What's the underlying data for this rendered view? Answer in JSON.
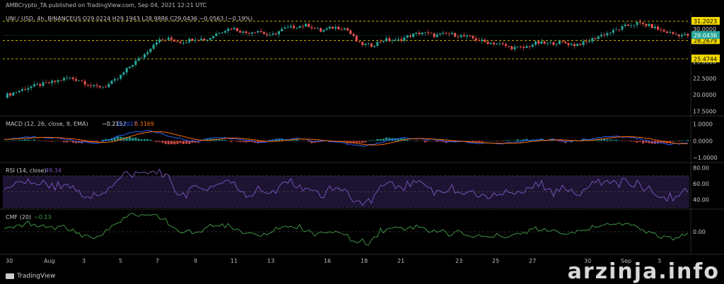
{
  "header": {
    "publisher": "AMBCrypto_TA published on TradingView.com, Sep 04, 2021 12:21 UTC"
  },
  "legend": {
    "price": "UNI / USD, 4h, BINANCEUS  O29.0224  H29.1943  L28.9886  C29.0436  −0.0563 (−0.19%)",
    "macd_title": "MACD (12, 26, close, 9, EMA)",
    "macd_hist": "−0.2152",
    "macd_line": "0.1017",
    "macd_signal": "0.3169",
    "rsi_title": "RSI (14, close)",
    "rsi_value": "49.34",
    "cmf_title": "CMF (20)",
    "cmf_value": "−0.13"
  },
  "price_axis": {
    "currency": "USD",
    "ticks": [
      "30.0000",
      "25.0000",
      "22.5000",
      "20.0000",
      "17.5000"
    ],
    "levels": [
      {
        "label": "31.2023",
        "value": 31.2023,
        "color": "#f2d900"
      },
      {
        "label": "28.2679",
        "value": 28.2679,
        "color": "#f2d900"
      },
      {
        "label": "25.4744",
        "value": 25.4744,
        "color": "#f2d900"
      }
    ],
    "current": {
      "label": "29.0436",
      "value": 29.0436,
      "color": "#26a69a"
    }
  },
  "macd_axis": {
    "ticks": [
      "1.0000",
      "0.0000",
      "−1.0000"
    ]
  },
  "rsi_axis": {
    "ticks": [
      "80.00",
      "60.00",
      "40.00"
    ]
  },
  "cmf_axis": {
    "ticks": [
      "0.00"
    ]
  },
  "time_axis": {
    "labels": [
      "30",
      "Aug",
      "3",
      "5",
      "7",
      "9",
      "11",
      "13",
      "16",
      "18",
      "21",
      "23",
      "25",
      "27",
      "30",
      "Sep",
      "3"
    ]
  },
  "branding": {
    "logo_text": "TradingView",
    "watermark": "arzinja.info"
  },
  "colors": {
    "up": "#26a69a",
    "down": "#ef5350",
    "macd": "#2962ff",
    "signal": "#ff6d00",
    "rsi": "#7e57c2",
    "cmf": "#43a047",
    "level": "#f2d900"
  },
  "chart_data": {
    "type": "candlestick",
    "symbol": "UNI / USD",
    "interval": "4h",
    "exchange": "BINANCEUS",
    "x_labels": [
      "30",
      "Aug",
      "3",
      "5",
      "7",
      "9",
      "11",
      "13",
      "16",
      "18",
      "21",
      "23",
      "25",
      "27",
      "30",
      "Sep",
      "3"
    ],
    "price_keypoints": [
      19.8,
      20.5,
      21.2,
      21.6,
      22.0,
      22.6,
      22.2,
      21.2,
      21.3,
      22.5,
      24.5,
      26.0,
      28.2,
      28.5,
      28.0,
      28.6,
      28.4,
      29.6,
      30.2,
      29.4,
      29.8,
      28.9,
      30.0,
      30.4,
      30.6,
      29.7,
      30.3,
      30.1,
      27.8,
      27.5,
      28.4,
      28.2,
      29.0,
      29.5,
      29.0,
      29.3,
      29.0,
      28.6,
      28.0,
      27.8,
      27.2,
      27.1,
      27.9,
      27.8,
      28.0,
      27.6,
      28.0,
      29.0,
      29.6,
      30.4,
      30.9,
      30.5,
      29.7,
      29.2,
      29.04
    ],
    "ylim": [
      17.0,
      32.5
    ],
    "levels": [
      31.2023,
      28.2679,
      25.4744
    ],
    "close": 29.0436,
    "macd": {
      "values": [
        -0.2152,
        0.1017,
        0.3169
      ],
      "ylim": [
        -1.2,
        1.4
      ]
    },
    "rsi": {
      "value": 49.34,
      "ylim": [
        30,
        85
      ],
      "bands": [
        70,
        30
      ]
    },
    "cmf": {
      "value": -0.13,
      "ylim": [
        -0.3,
        0.3
      ]
    }
  }
}
